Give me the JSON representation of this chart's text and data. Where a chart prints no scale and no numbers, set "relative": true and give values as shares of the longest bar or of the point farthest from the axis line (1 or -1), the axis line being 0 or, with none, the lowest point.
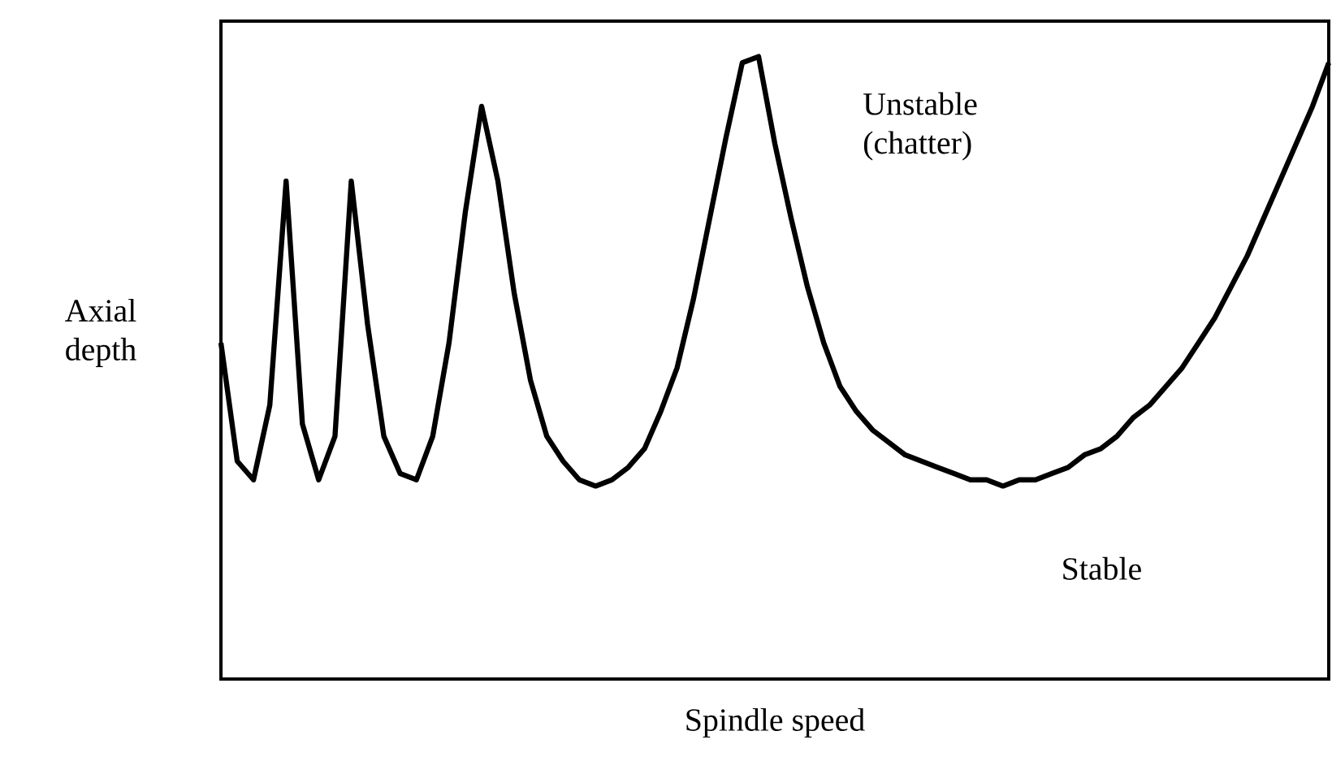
{
  "chart_data": {
    "type": "line",
    "relative": true,
    "color": "#000000",
    "xlabel": "Spindle speed",
    "ylabel": "Axial depth",
    "annotations": [
      "Unstable (chatter)",
      "Stable"
    ],
    "categories": [
      null,
      null,
      null,
      null,
      null,
      null,
      null,
      null,
      null,
      null,
      null,
      null,
      null,
      null,
      null,
      null,
      null,
      null,
      null,
      null,
      null,
      null,
      null,
      null,
      null,
      null,
      null,
      null,
      null,
      null,
      null,
      null,
      null,
      null,
      null,
      null,
      null,
      null,
      null,
      null,
      null,
      null,
      null,
      null,
      null,
      null,
      null,
      null,
      null,
      null,
      null,
      null,
      null,
      null,
      null,
      null,
      null,
      null,
      null,
      null,
      null,
      null,
      null,
      null,
      null,
      null,
      null,
      null,
      null
    ],
    "values": [
      0.54,
      0.35,
      0.32,
      0.44,
      0.8,
      0.41,
      0.32,
      0.39,
      0.8,
      0.57,
      0.39,
      0.33,
      0.32,
      0.39,
      0.54,
      0.75,
      0.92,
      0.8,
      0.62,
      0.48,
      0.39,
      0.35,
      0.32,
      0.31,
      0.32,
      0.34,
      0.37,
      0.43,
      0.5,
      0.61,
      0.74,
      0.87,
      0.99,
      1,
      0.86,
      0.74,
      0.63,
      0.54,
      0.47,
      0.43,
      0.4,
      0.38,
      0.36,
      0.35,
      0.34,
      0.33,
      0.32,
      0.32,
      0.31,
      0.32,
      0.32,
      0.33,
      0.34,
      0.36,
      0.37,
      0.39,
      0.42,
      0.44,
      0.47,
      0.5,
      0.54,
      0.58,
      0.63,
      0.68,
      0.74,
      0.8,
      0.86,
      0.92,
      0.99
    ]
  }
}
